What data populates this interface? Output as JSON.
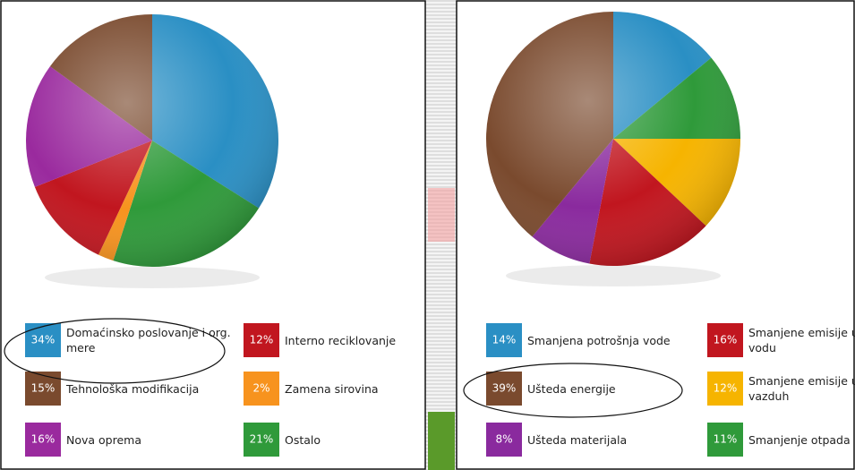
{
  "chart_data": [
    {
      "type": "pie",
      "categories": [
        "Domaćinsko poslovanje i org. mere",
        "Ostalo",
        "Zamena sirovina",
        "Interno reciklovanje",
        "Nova oprema",
        "Tehnološka modifikacija"
      ],
      "values": [
        34,
        21,
        2,
        12,
        16,
        15
      ],
      "value_labels": [
        "34%",
        "21%",
        "2%",
        "12%",
        "16%",
        "15%"
      ],
      "colors": [
        "#2a8fc4",
        "#2f9a3a",
        "#f7931e",
        "#c1161f",
        "#9a2a9e",
        "#7a4a2e"
      ]
    },
    {
      "type": "pie",
      "categories": [
        "Smanjena potrošnja vode",
        "Smanjenje otpada",
        "Smanjene emisije u vazduh",
        "Smanjene emisije u vodu",
        "Ušteda materijala",
        "Ušteda energije"
      ],
      "values": [
        14,
        11,
        12,
        16,
        8,
        39
      ],
      "value_labels": [
        "14%",
        "11%",
        "12%",
        "16%",
        "8%",
        "39%"
      ],
      "colors": [
        "#2a8fc4",
        "#2f9a3a",
        "#f6b400",
        "#c1161f",
        "#8a2a9e",
        "#7a4a2e"
      ]
    }
  ]
}
